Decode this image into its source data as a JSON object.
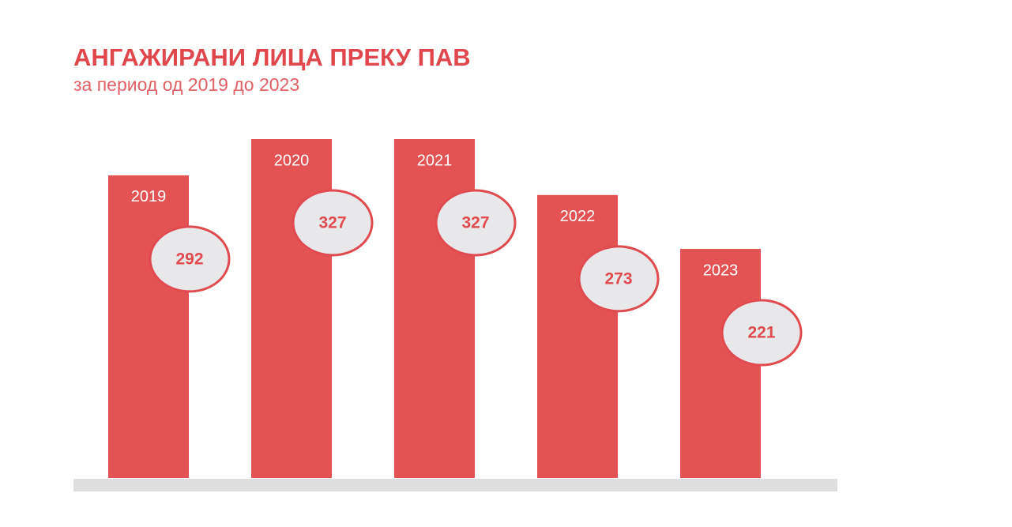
{
  "chart_data": {
    "type": "bar",
    "title": "АНГАЖИРАНИ ЛИЦА ПРЕКУ ПАВ",
    "subtitle": "за период од 2019 до 2023",
    "categories": [
      "2019",
      "2020",
      "2021",
      "2022",
      "2023"
    ],
    "values": [
      292,
      327,
      327,
      273,
      221
    ],
    "color": "#e35354"
  }
}
